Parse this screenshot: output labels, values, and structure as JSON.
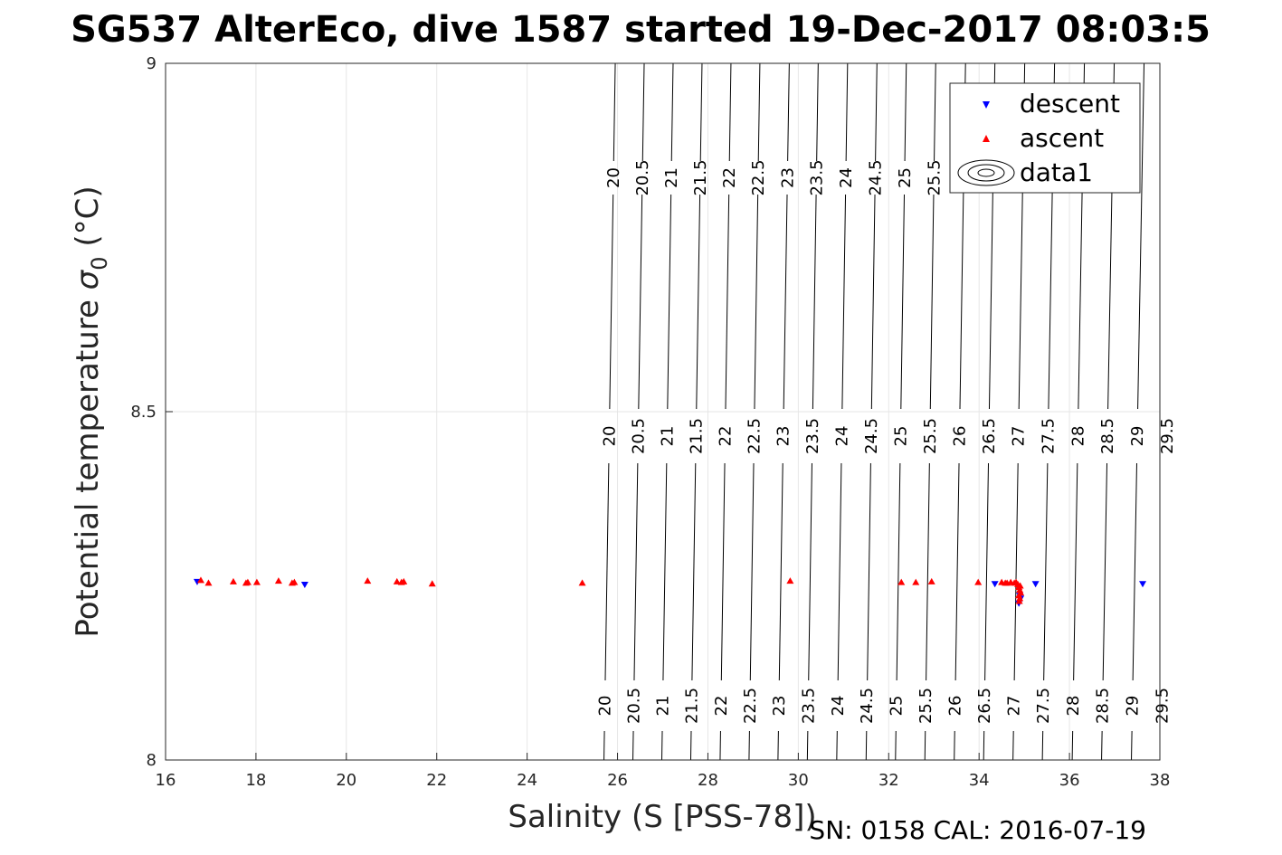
{
  "chart_data": {
    "type": "scatter",
    "title": "SG537 AlterEco, dive 1587 started 19-Dec-2017 08:03:5",
    "xlabel": "Salinity (S [PSS-78])",
    "ylabel_main": "Potential temperature ",
    "ylabel_symbol": "σ",
    "ylabel_sub": "0",
    "ylabel_unit": " (°C)",
    "xlim": [
      16,
      38
    ],
    "ylim": [
      8,
      9
    ],
    "xticks": [
      16,
      18,
      20,
      22,
      24,
      26,
      28,
      30,
      32,
      34,
      36,
      38
    ],
    "xtick_labels": [
      "16",
      "18",
      "20",
      "22",
      "24",
      "26",
      "28",
      "30",
      "32",
      "34",
      "36",
      "38"
    ],
    "yticks": [
      8,
      8.5,
      9
    ],
    "ytick_labels": [
      "8",
      "8.5",
      "9"
    ],
    "grid": true,
    "legend_position": "top-right",
    "legend": [
      "descent",
      "ascent",
      "data1"
    ],
    "colors": {
      "descent": "#0000ff",
      "ascent": "#ff0000",
      "contour": "#000000",
      "grid": "#e6e6e6",
      "axis": "#262626"
    },
    "series": [
      {
        "name": "descent",
        "marker": "triangle-down",
        "x": [
          16.7,
          19.08,
          34.35,
          35.25,
          37.62,
          34.9,
          34.88,
          34.92
        ],
        "y": [
          8.256,
          8.252,
          8.253,
          8.253,
          8.253,
          8.236,
          8.225,
          8.232
        ]
      },
      {
        "name": "ascent",
        "marker": "triangle-up",
        "x": [
          16.78,
          16.95,
          17.5,
          17.78,
          17.82,
          18.02,
          18.5,
          18.8,
          18.85,
          20.47,
          21.12,
          21.22,
          21.27,
          21.9,
          25.22,
          29.82,
          32.28,
          32.6,
          32.95,
          33.98,
          34.5,
          34.58,
          34.62,
          34.7,
          34.78,
          34.82,
          34.86,
          34.88,
          34.9,
          34.92,
          34.88,
          34.9,
          34.89,
          34.91
        ],
        "y": [
          8.258,
          8.254,
          8.256,
          8.254,
          8.255,
          8.255,
          8.257,
          8.254,
          8.255,
          8.257,
          8.256,
          8.255,
          8.256,
          8.253,
          8.254,
          8.257,
          8.255,
          8.255,
          8.256,
          8.255,
          8.255,
          8.254,
          8.254,
          8.255,
          8.254,
          8.255,
          8.252,
          8.248,
          8.244,
          8.24,
          8.236,
          8.232,
          8.228,
          8.25
        ]
      }
    ],
    "contours": {
      "name": "data1",
      "levels": [
        "20",
        "20.5",
        "21",
        "21.5",
        "22",
        "22.5",
        "23",
        "23.5",
        "24",
        "24.5",
        "25",
        "25.5",
        "26",
        "26.5",
        "27",
        "27.5",
        "28",
        "28.5",
        "29",
        "29.5"
      ],
      "level_values": [
        20,
        20.5,
        21,
        21.5,
        22,
        22.5,
        23,
        23.5,
        24,
        24.5,
        25,
        25.5,
        26,
        26.5,
        27,
        27.5,
        28,
        28.5,
        29,
        29.5
      ],
      "x_at_bottom": [
        25.7,
        26.34,
        26.98,
        27.62,
        28.27,
        28.91,
        29.55,
        30.2,
        30.85,
        31.5,
        32.15,
        32.8,
        33.45,
        34.1,
        34.75,
        35.4,
        36.06,
        36.71,
        37.37,
        38.03
      ],
      "x_at_top": [
        25.95,
        26.59,
        27.23,
        27.87,
        28.51,
        29.15,
        29.8,
        30.44,
        31.09,
        31.74,
        32.39,
        33.04,
        33.7,
        34.35,
        35.01,
        35.67,
        36.33,
        36.99,
        37.65,
        38.31
      ],
      "top_labels": [
        "20",
        "20.5",
        "21",
        "21.5",
        "22",
        "22.5",
        "23",
        "23.5",
        "24",
        "24.5",
        "25",
        "25.5"
      ],
      "middle_labels": [
        "20",
        "20.5",
        "21",
        "21.5",
        "22",
        "22.5",
        "23",
        "23.5",
        "24",
        "24.5",
        "25",
        "25.5",
        "26",
        "26.5",
        "27",
        "27.5",
        "28",
        "28.5",
        "29",
        "29.5"
      ],
      "bottom_labels": [
        "20",
        "20.5",
        "21",
        "21.5",
        "22",
        "22.5",
        "23",
        "23.5",
        "24",
        "24.5",
        "25",
        "25.5",
        "26",
        "26.5",
        "27",
        "27.5",
        "28",
        "28.5",
        "29",
        "29.5"
      ]
    },
    "footer": "SN: 0158  CAL: 2016-07-19"
  }
}
